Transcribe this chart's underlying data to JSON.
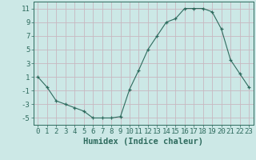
{
  "x": [
    0,
    1,
    2,
    3,
    4,
    5,
    6,
    7,
    8,
    9,
    10,
    11,
    12,
    13,
    14,
    15,
    16,
    17,
    18,
    19,
    20,
    21,
    22,
    23
  ],
  "y": [
    1,
    -0.5,
    -2.5,
    -3,
    -3.5,
    -4,
    -5,
    -5,
    -5,
    -4.8,
    -0.8,
    2,
    5,
    7,
    9,
    9.5,
    11,
    11,
    11,
    10.5,
    8,
    3.5,
    1.5,
    -0.5
  ],
  "line_color": "#2e6b5e",
  "marker": "+",
  "bg_color": "#cce8e6",
  "grid_color": "#c8b8c0",
  "xlabel": "Humidex (Indice chaleur)",
  "ylabel": "",
  "xlim": [
    -0.5,
    23.5
  ],
  "ylim": [
    -6,
    12
  ],
  "yticks": [
    -5,
    -3,
    -1,
    1,
    3,
    5,
    7,
    9,
    11
  ],
  "xticks": [
    0,
    1,
    2,
    3,
    4,
    5,
    6,
    7,
    8,
    9,
    10,
    11,
    12,
    13,
    14,
    15,
    16,
    17,
    18,
    19,
    20,
    21,
    22,
    23
  ],
  "tick_color": "#2e6b5e",
  "label_fontsize": 6.5,
  "xlabel_fontsize": 7.5
}
